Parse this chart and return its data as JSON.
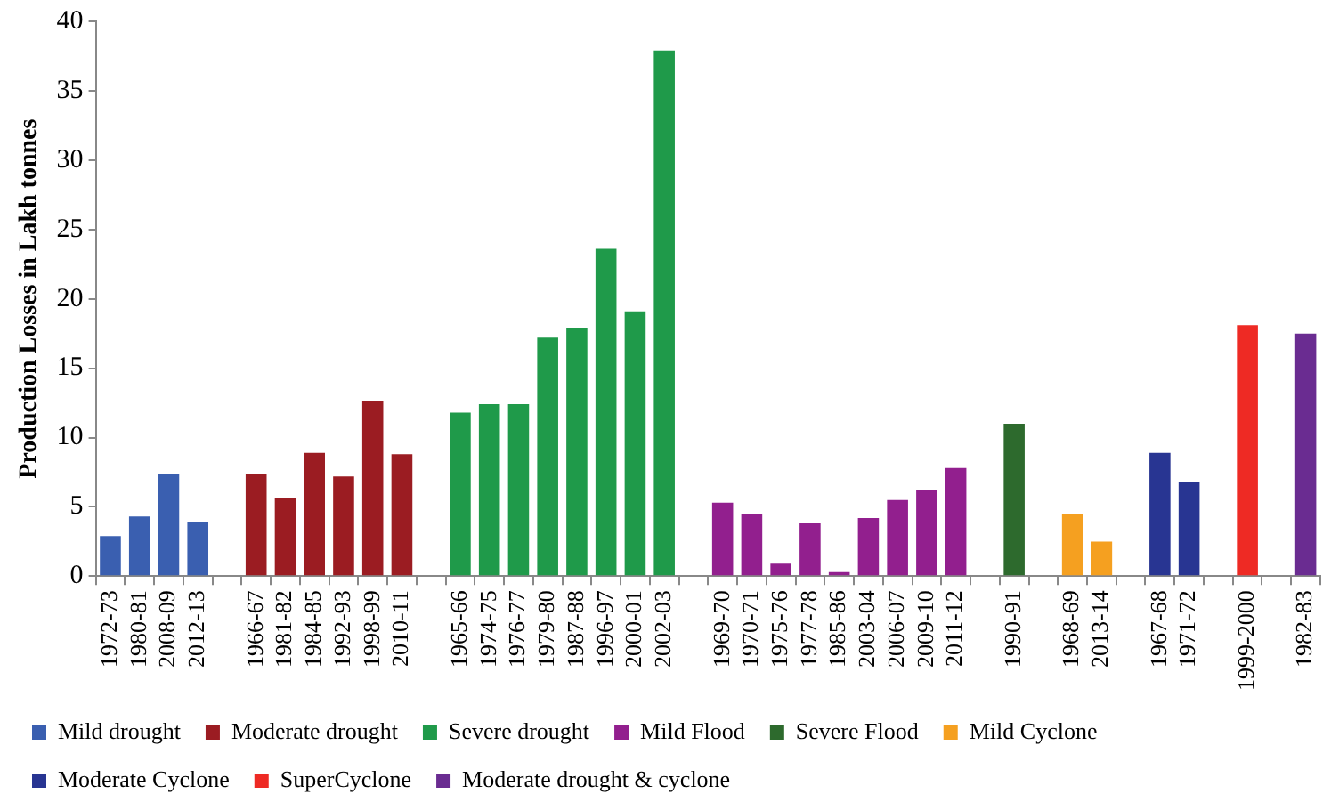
{
  "chart_data": {
    "type": "bar",
    "ylabel": "Production Losses in Lakh tonnes",
    "categories": [
      "1972-73",
      "1980-81",
      "2008-09",
      "2012-13",
      null,
      "1966-67",
      "1981-82",
      "1984-85",
      "1992-93",
      "1998-99",
      "2010-11",
      null,
      "1965-66",
      "1974-75",
      "1976-77",
      "1979-80",
      "1987-88",
      "1996-97",
      "2000-01",
      "2002-03",
      null,
      "1969-70",
      "1970-71",
      "1975-76",
      "1977-78",
      "1985-86",
      "2003-04",
      "2006-07",
      "2009-10",
      "2011-12",
      null,
      "1990-91",
      null,
      "1968-69",
      "2013-14",
      null,
      "1967-68",
      "1971-72",
      null,
      "1999-2000",
      null,
      "1982-83"
    ],
    "ylim": [
      0,
      40
    ],
    "yticks": [
      0,
      5,
      10,
      15,
      20,
      25,
      30,
      35,
      40
    ],
    "grid": false,
    "legend": "bottom",
    "series": [
      {
        "name": "Mild drought",
        "color": "#3a5fb0",
        "values": [
          2.9,
          4.3,
          7.4,
          3.9,
          null,
          null,
          null,
          null,
          null,
          null,
          null,
          null,
          null,
          null,
          null,
          null,
          null,
          null,
          null,
          null,
          null,
          null,
          null,
          null,
          null,
          null,
          null,
          null,
          null,
          null,
          null,
          null,
          null,
          null,
          null,
          null,
          null,
          null,
          null,
          null,
          null,
          null
        ]
      },
      {
        "name": "Moderate drought",
        "color": "#9b1c22",
        "values": [
          null,
          null,
          null,
          null,
          null,
          7.4,
          5.6,
          8.9,
          7.2,
          12.6,
          8.8,
          null,
          null,
          null,
          null,
          null,
          null,
          null,
          null,
          null,
          null,
          null,
          null,
          null,
          null,
          null,
          null,
          null,
          null,
          null,
          null,
          null,
          null,
          null,
          null,
          null,
          null,
          null,
          null,
          null,
          null,
          null
        ]
      },
      {
        "name": "Severe drought",
        "color": "#1f9a4a",
        "values": [
          null,
          null,
          null,
          null,
          null,
          null,
          null,
          null,
          null,
          null,
          null,
          null,
          11.8,
          12.4,
          12.4,
          17.2,
          17.9,
          23.6,
          19.1,
          37.9,
          null,
          null,
          null,
          null,
          null,
          null,
          null,
          null,
          null,
          null,
          null,
          null,
          null,
          null,
          null,
          null,
          null,
          null,
          null,
          null,
          null,
          null
        ]
      },
      {
        "name": "Mild Flood",
        "color": "#921f8e",
        "values": [
          null,
          null,
          null,
          null,
          null,
          null,
          null,
          null,
          null,
          null,
          null,
          null,
          null,
          null,
          null,
          null,
          null,
          null,
          null,
          null,
          null,
          5.3,
          4.5,
          0.9,
          3.8,
          0.3,
          4.2,
          5.5,
          6.2,
          7.8,
          null,
          null,
          null,
          null,
          null,
          null,
          null,
          null,
          null,
          null,
          null,
          null
        ]
      },
      {
        "name": "Severe Flood",
        "color": "#2d6a2d",
        "values": [
          null,
          null,
          null,
          null,
          null,
          null,
          null,
          null,
          null,
          null,
          null,
          null,
          null,
          null,
          null,
          null,
          null,
          null,
          null,
          null,
          null,
          null,
          null,
          null,
          null,
          null,
          null,
          null,
          null,
          null,
          null,
          11.0,
          null,
          null,
          null,
          null,
          null,
          null,
          null,
          null,
          null,
          null
        ]
      },
      {
        "name": "Mild Cyclone",
        "color": "#f5a020",
        "values": [
          null,
          null,
          null,
          null,
          null,
          null,
          null,
          null,
          null,
          null,
          null,
          null,
          null,
          null,
          null,
          null,
          null,
          null,
          null,
          null,
          null,
          null,
          null,
          null,
          null,
          null,
          null,
          null,
          null,
          null,
          null,
          null,
          null,
          4.5,
          2.5,
          null,
          null,
          null,
          null,
          null,
          null,
          null
        ]
      },
      {
        "name": "Moderate Cyclone",
        "color": "#283592",
        "values": [
          null,
          null,
          null,
          null,
          null,
          null,
          null,
          null,
          null,
          null,
          null,
          null,
          null,
          null,
          null,
          null,
          null,
          null,
          null,
          null,
          null,
          null,
          null,
          null,
          null,
          null,
          null,
          null,
          null,
          null,
          null,
          null,
          null,
          null,
          null,
          null,
          8.9,
          6.8,
          null,
          null,
          null,
          null
        ]
      },
      {
        "name": "SuperCyclone",
        "color": "#ee2a24",
        "values": [
          null,
          null,
          null,
          null,
          null,
          null,
          null,
          null,
          null,
          null,
          null,
          null,
          null,
          null,
          null,
          null,
          null,
          null,
          null,
          null,
          null,
          null,
          null,
          null,
          null,
          null,
          null,
          null,
          null,
          null,
          null,
          null,
          null,
          null,
          null,
          null,
          null,
          null,
          null,
          18.1,
          null,
          null
        ]
      },
      {
        "name": "Moderate drought & cyclone",
        "color": "#6a2c91",
        "values": [
          null,
          null,
          null,
          null,
          null,
          null,
          null,
          null,
          null,
          null,
          null,
          null,
          null,
          null,
          null,
          null,
          null,
          null,
          null,
          null,
          null,
          null,
          null,
          null,
          null,
          null,
          null,
          null,
          null,
          null,
          null,
          null,
          null,
          null,
          null,
          null,
          null,
          null,
          null,
          null,
          null,
          17.5
        ]
      }
    ]
  }
}
